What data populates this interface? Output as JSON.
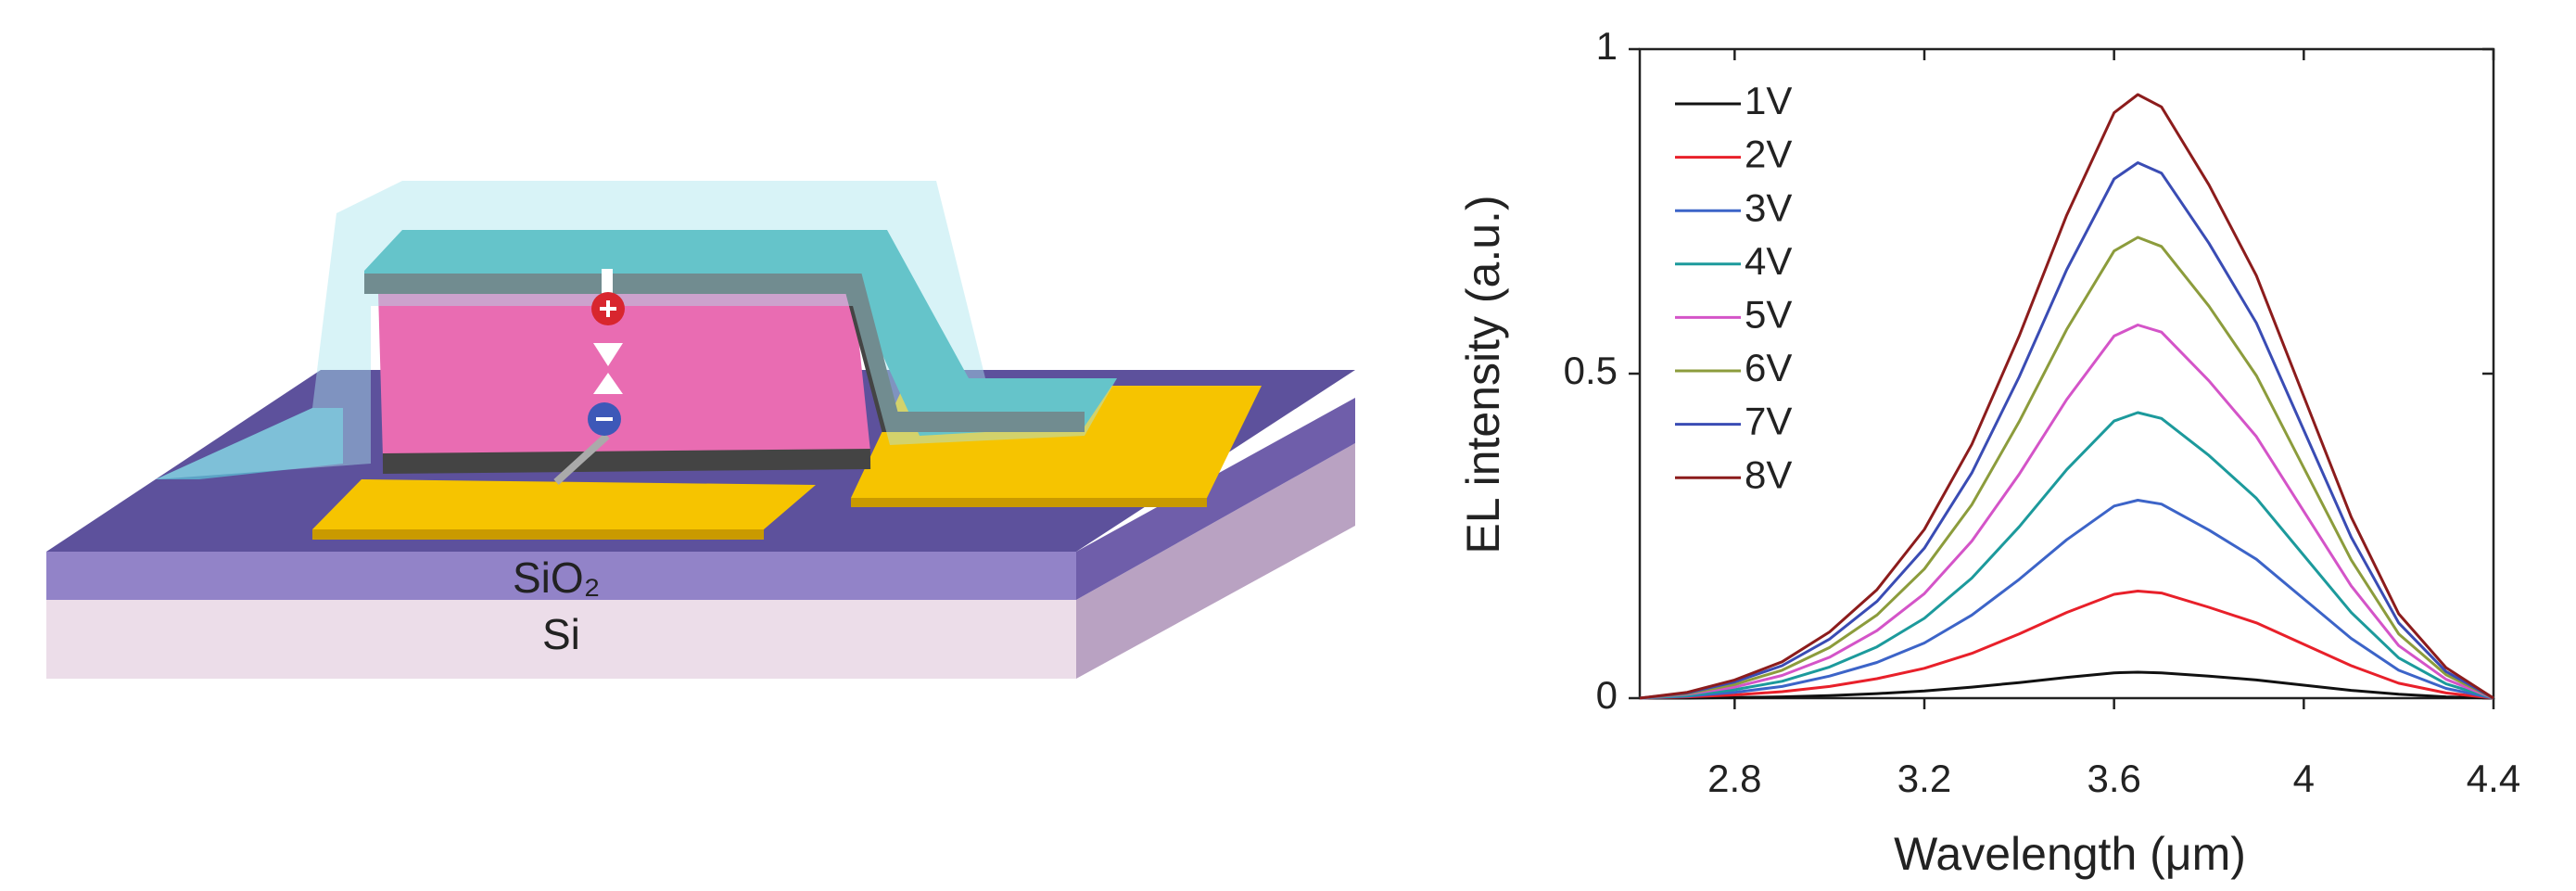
{
  "diagram": {
    "labels": [
      "SiO₂",
      "Si"
    ]
  },
  "chart_data": {
    "type": "line",
    "xlabel": "Wavelength (μm)",
    "ylabel": "EL intensity (a.u.)",
    "x": [
      2.6,
      2.7,
      2.8,
      2.9,
      3.0,
      3.1,
      3.2,
      3.3,
      3.4,
      3.5,
      3.6,
      3.65,
      3.7,
      3.8,
      3.9,
      4.0,
      4.1,
      4.2,
      4.3,
      4.4
    ],
    "xlim": [
      2.6,
      4.4
    ],
    "xticks": [
      2.8,
      3.2,
      3.6,
      4,
      4.4
    ],
    "ylim": [
      0,
      1
    ],
    "yticks": [
      0,
      0.5,
      1
    ],
    "legend": "upper-left",
    "series": [
      {
        "name": "1V",
        "color": "#111111",
        "values": [
          0,
          0,
          0.001,
          0.002,
          0.004,
          0.007,
          0.011,
          0.017,
          0.024,
          0.032,
          0.039,
          0.04,
          0.039,
          0.034,
          0.028,
          0.02,
          0.012,
          0.006,
          0.002,
          0
        ]
      },
      {
        "name": "2V",
        "color": "#e8202a",
        "values": [
          0,
          0.002,
          0.005,
          0.01,
          0.018,
          0.03,
          0.046,
          0.069,
          0.099,
          0.132,
          0.16,
          0.165,
          0.162,
          0.14,
          0.116,
          0.083,
          0.05,
          0.023,
          0.008,
          0
        ]
      },
      {
        "name": "3V",
        "color": "#3c64c8",
        "values": [
          0,
          0.003,
          0.009,
          0.018,
          0.034,
          0.055,
          0.085,
          0.128,
          0.183,
          0.244,
          0.296,
          0.305,
          0.299,
          0.259,
          0.214,
          0.153,
          0.092,
          0.043,
          0.015,
          0
        ]
      },
      {
        "name": "4V",
        "color": "#1c9a9c",
        "values": [
          0,
          0.004,
          0.013,
          0.026,
          0.048,
          0.079,
          0.123,
          0.185,
          0.264,
          0.352,
          0.427,
          0.44,
          0.431,
          0.374,
          0.308,
          0.22,
          0.132,
          0.062,
          0.022,
          0
        ]
      },
      {
        "name": "5V",
        "color": "#d454c8",
        "values": [
          0,
          0.006,
          0.017,
          0.035,
          0.063,
          0.104,
          0.161,
          0.242,
          0.345,
          0.46,
          0.558,
          0.575,
          0.564,
          0.489,
          0.403,
          0.288,
          0.173,
          0.081,
          0.029,
          0
        ]
      },
      {
        "name": "6V",
        "color": "#8c9c3c",
        "values": [
          0,
          0.007,
          0.021,
          0.043,
          0.078,
          0.128,
          0.199,
          0.298,
          0.426,
          0.568,
          0.689,
          0.71,
          0.696,
          0.604,
          0.497,
          0.355,
          0.213,
          0.099,
          0.036,
          0
        ]
      },
      {
        "name": "7V",
        "color": "#3a4cb4",
        "values": [
          0,
          0.008,
          0.025,
          0.05,
          0.091,
          0.149,
          0.231,
          0.347,
          0.495,
          0.66,
          0.8,
          0.825,
          0.809,
          0.701,
          0.578,
          0.413,
          0.248,
          0.116,
          0.041,
          0
        ]
      },
      {
        "name": "8V",
        "color": "#8c1c1c",
        "values": [
          0,
          0.009,
          0.028,
          0.056,
          0.102,
          0.167,
          0.26,
          0.391,
          0.558,
          0.744,
          0.902,
          0.93,
          0.911,
          0.791,
          0.651,
          0.465,
          0.279,
          0.13,
          0.047,
          0
        ]
      }
    ]
  }
}
